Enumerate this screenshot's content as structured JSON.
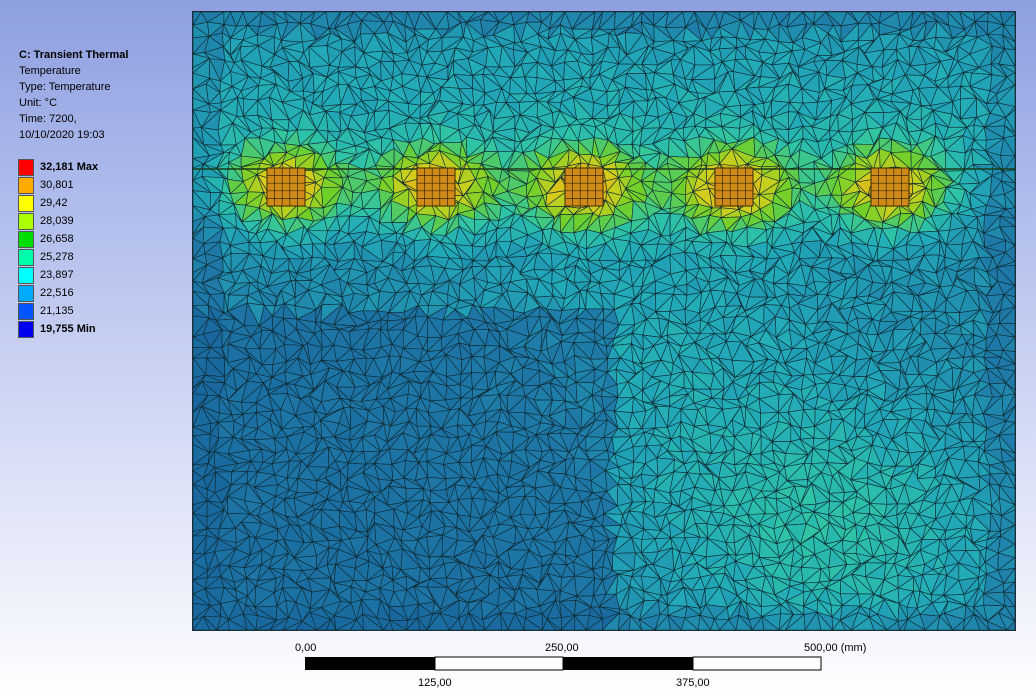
{
  "legend": {
    "title": "C: Transient Thermal",
    "result": "Temperature",
    "type_line": "Type: Temperature",
    "unit_line": "Unit: °C",
    "time_line": "Time: 7200,",
    "date_line": "10/10/2020 19:03",
    "levels": [
      {
        "label": "32,181 Max",
        "color": "#ff0000",
        "bold": true
      },
      {
        "label": "30,801",
        "color": "#ffaa00",
        "bold": false
      },
      {
        "label": "29,42",
        "color": "#ffff00",
        "bold": false
      },
      {
        "label": "28,039",
        "color": "#aaff00",
        "bold": false
      },
      {
        "label": "26,658",
        "color": "#00dd00",
        "bold": false
      },
      {
        "label": "25,278",
        "color": "#00ffaa",
        "bold": false
      },
      {
        "label": "23,897",
        "color": "#00ffff",
        "bold": false
      },
      {
        "label": "22,516",
        "color": "#00aaff",
        "bold": false
      },
      {
        "label": "21,135",
        "color": "#0055ff",
        "bold": false
      },
      {
        "label": "19,755 Min",
        "color": "#0000ee",
        "bold": true
      }
    ]
  },
  "scale_bar": {
    "top_labels": [
      "0,00",
      "250,00",
      "500,00 (mm)"
    ],
    "bottom_labels": [
      "125,00",
      "375,00"
    ]
  },
  "colors": {
    "mesh_line": "#0e2a33",
    "cold": "#1f7aa8",
    "mid": "#22a9b8",
    "warm": "#2fc4a6",
    "hot": "#6fd02a",
    "peak": "#d3cf1c"
  }
}
